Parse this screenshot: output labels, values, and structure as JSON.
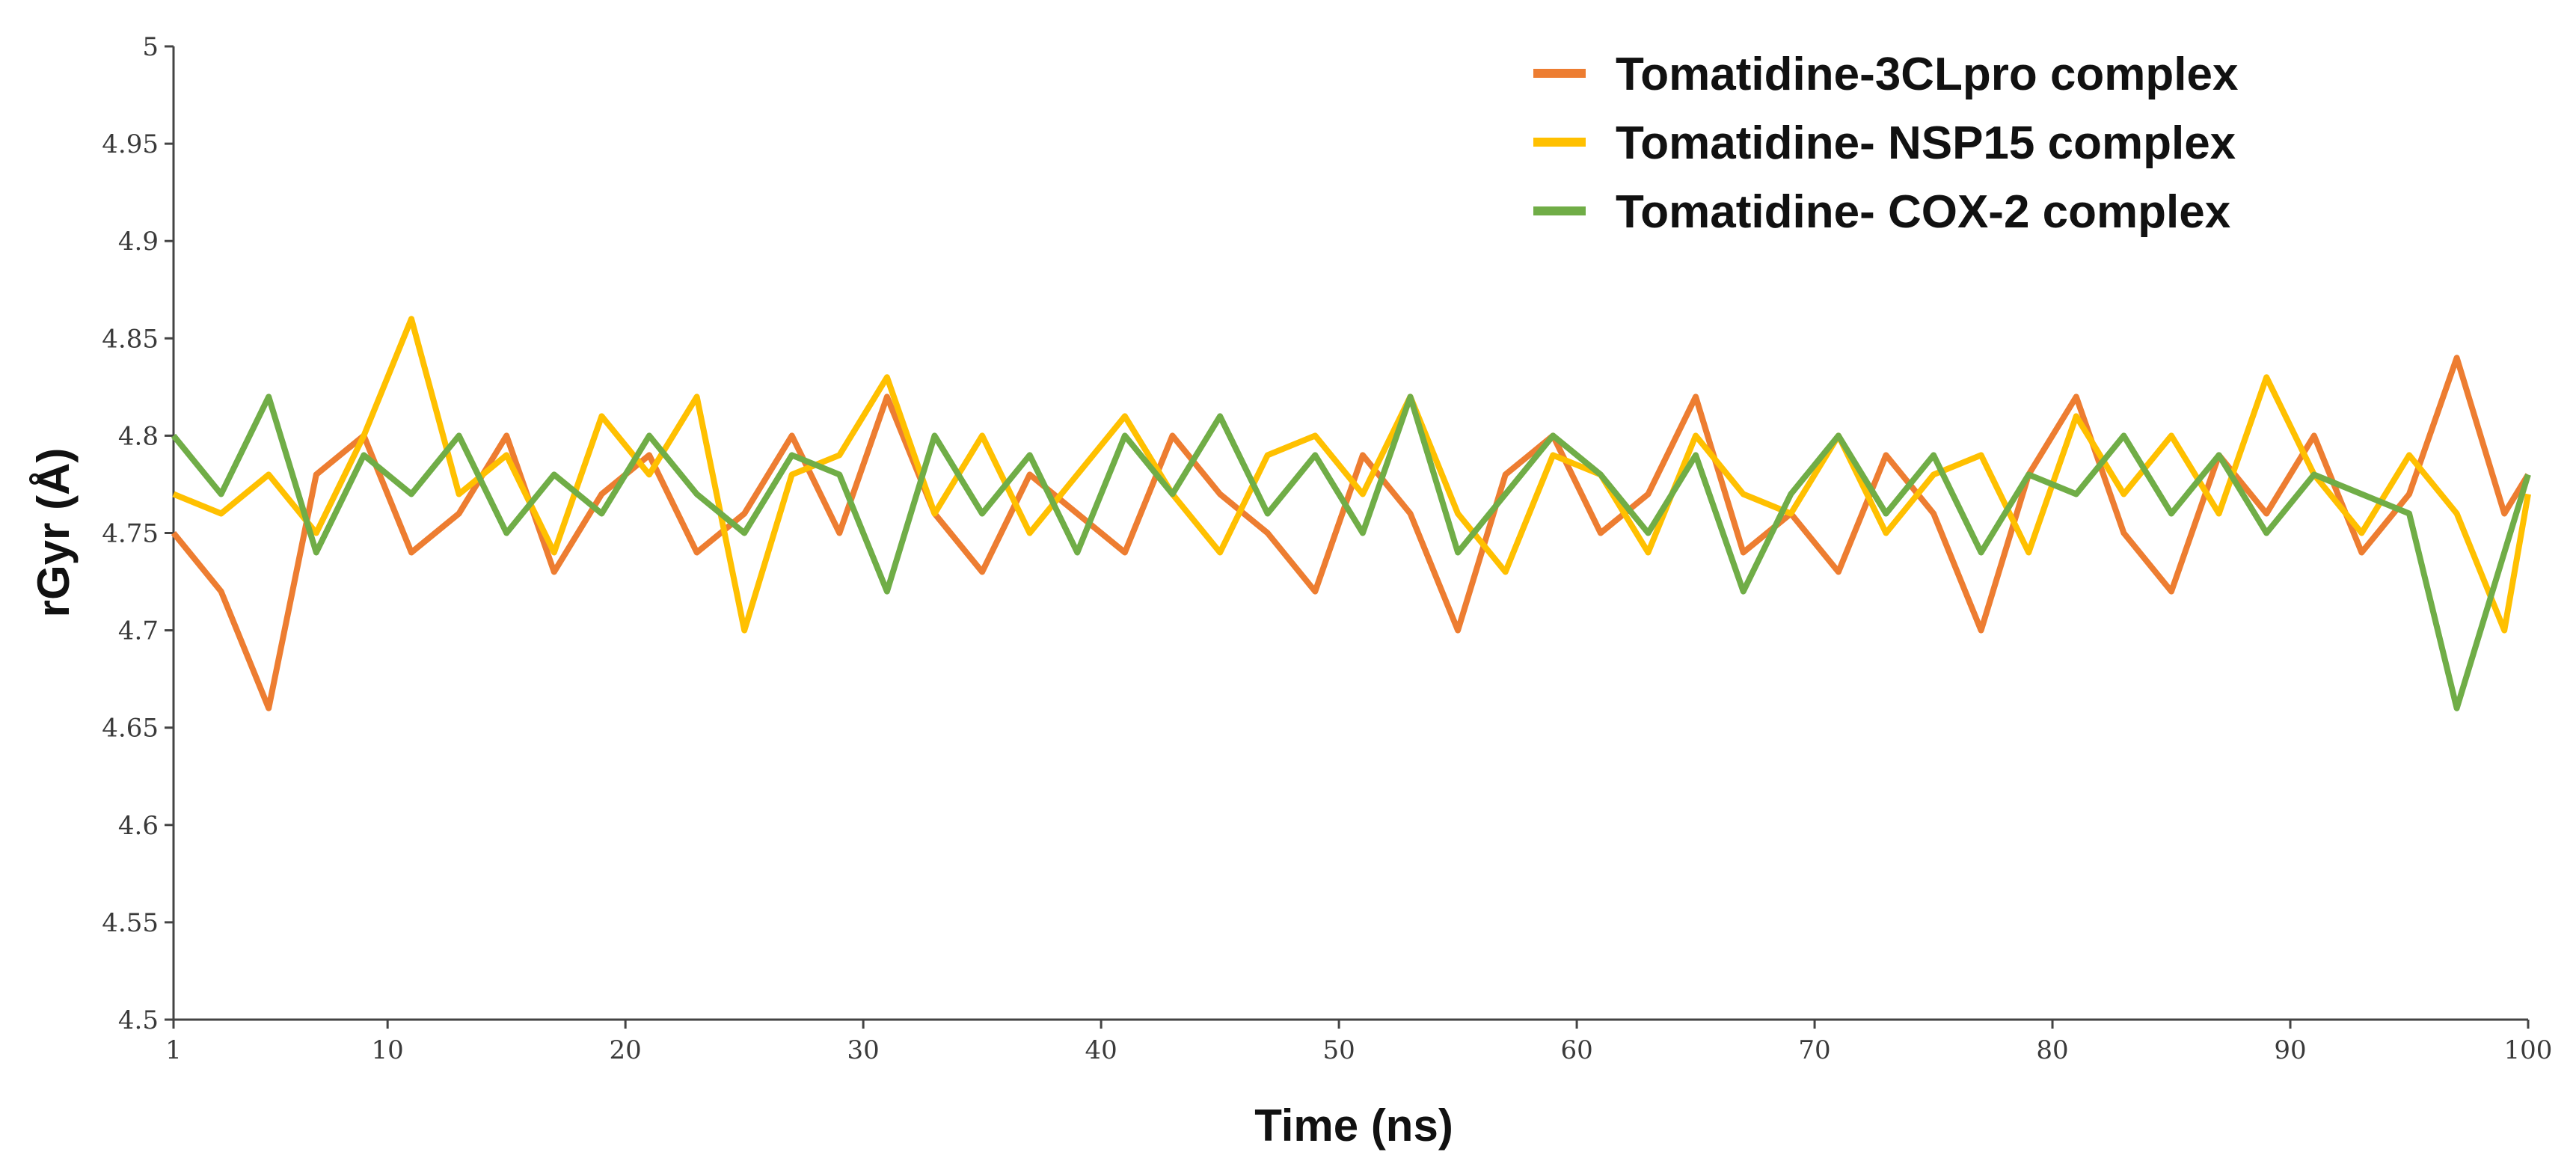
{
  "chart_data": {
    "type": "line",
    "title": "",
    "xlabel": "Time (ns)",
    "ylabel": "rGyr (Å)",
    "xlim": [
      1,
      100
    ],
    "ylim": [
      4.5,
      5.0
    ],
    "x_ticks": [
      1,
      10,
      20,
      30,
      40,
      50,
      60,
      70,
      80,
      90,
      100
    ],
    "x_tick_labels": [
      "1",
      "10",
      "20",
      "30",
      "40",
      "50",
      "60",
      "70",
      "80",
      "90",
      "100"
    ],
    "y_ticks": [
      4.5,
      4.55,
      4.6,
      4.65,
      4.7,
      4.75,
      4.8,
      4.85,
      4.9,
      4.95,
      5.0
    ],
    "y_tick_labels": [
      "4.5",
      "4.55",
      "4.6",
      "4.65",
      "4.7",
      "4.75",
      "4.8",
      "4.85",
      "4.9",
      "4.95",
      "5"
    ],
    "grid": false,
    "legend_position": "top-right",
    "x": [
      1,
      3,
      5,
      7,
      9,
      11,
      13,
      15,
      17,
      19,
      21,
      23,
      25,
      27,
      29,
      31,
      33,
      35,
      37,
      39,
      41,
      43,
      45,
      47,
      49,
      51,
      53,
      55,
      57,
      59,
      61,
      63,
      65,
      67,
      69,
      71,
      73,
      75,
      77,
      79,
      81,
      83,
      85,
      87,
      89,
      91,
      93,
      95,
      97,
      99,
      100
    ],
    "series": [
      {
        "name": "Tomatidine-3CLpro complex",
        "color": "#ED7D31",
        "values": [
          4.75,
          4.72,
          4.66,
          4.78,
          4.8,
          4.74,
          4.76,
          4.8,
          4.73,
          4.77,
          4.79,
          4.74,
          4.76,
          4.8,
          4.75,
          4.82,
          4.76,
          4.73,
          4.78,
          4.76,
          4.74,
          4.8,
          4.77,
          4.75,
          4.72,
          4.79,
          4.76,
          4.7,
          4.78,
          4.8,
          4.75,
          4.77,
          4.82,
          4.74,
          4.76,
          4.73,
          4.79,
          4.76,
          4.7,
          4.78,
          4.82,
          4.75,
          4.72,
          4.79,
          4.76,
          4.8,
          4.74,
          4.77,
          4.84,
          4.76,
          4.78
        ]
      },
      {
        "name": "Tomatidine- NSP15 complex",
        "color": "#FFC000",
        "values": [
          4.77,
          4.76,
          4.78,
          4.75,
          4.8,
          4.86,
          4.77,
          4.79,
          4.74,
          4.81,
          4.78,
          4.82,
          4.7,
          4.78,
          4.79,
          4.83,
          4.76,
          4.8,
          4.75,
          4.78,
          4.81,
          4.77,
          4.74,
          4.79,
          4.8,
          4.77,
          4.82,
          4.76,
          4.73,
          4.79,
          4.78,
          4.74,
          4.8,
          4.77,
          4.76,
          4.8,
          4.75,
          4.78,
          4.79,
          4.74,
          4.81,
          4.77,
          4.8,
          4.76,
          4.83,
          4.78,
          4.75,
          4.79,
          4.76,
          4.7,
          4.77
        ]
      },
      {
        "name": "Tomatidine- COX-2 complex",
        "color": "#70AD47",
        "values": [
          4.8,
          4.77,
          4.82,
          4.74,
          4.79,
          4.77,
          4.8,
          4.75,
          4.78,
          4.76,
          4.8,
          4.77,
          4.75,
          4.79,
          4.78,
          4.72,
          4.8,
          4.76,
          4.79,
          4.74,
          4.8,
          4.77,
          4.81,
          4.76,
          4.79,
          4.75,
          4.82,
          4.74,
          4.77,
          4.8,
          4.78,
          4.75,
          4.79,
          4.72,
          4.77,
          4.8,
          4.76,
          4.79,
          4.74,
          4.78,
          4.77,
          4.8,
          4.76,
          4.79,
          4.75,
          4.78,
          4.77,
          4.76,
          4.66,
          4.74,
          4.78
        ]
      }
    ]
  }
}
